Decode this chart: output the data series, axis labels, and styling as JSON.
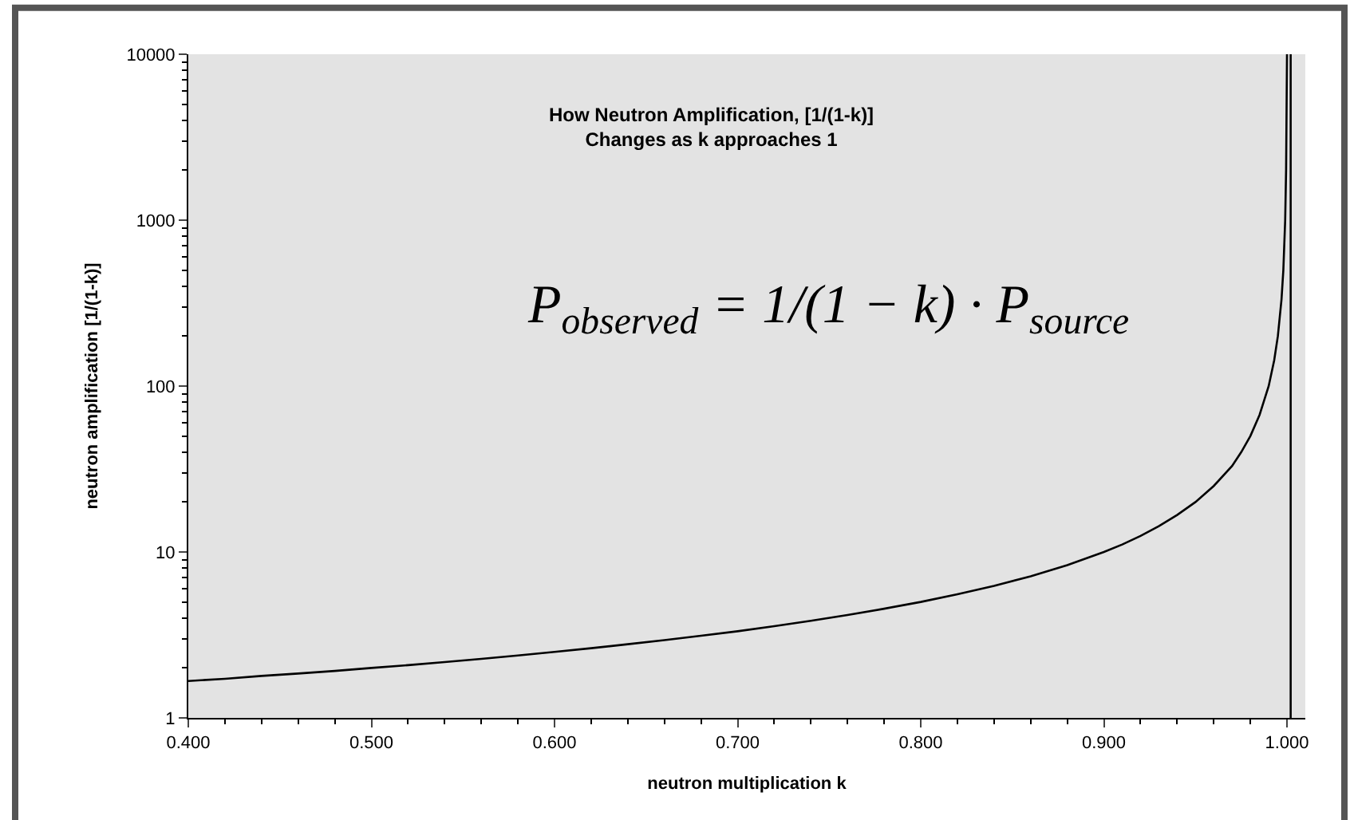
{
  "chart_data": {
    "type": "line",
    "title": "How Neutron Amplification, [1/(1-k)]\nChanges as k approaches 1",
    "xlabel": "neutron multiplication k",
    "ylabel": "neutron amplification [1/(1-k)]",
    "annotations": [
      "P$_{observed}$ = 1/(1 − k) · P$_{source}$"
    ],
    "series": [
      {
        "color": "#000000",
        "x": [
          0.4,
          0.42,
          0.44,
          0.46,
          0.48,
          0.5,
          0.52,
          0.54,
          0.56,
          0.58,
          0.6,
          0.62,
          0.64,
          0.66,
          0.68,
          0.7,
          0.72,
          0.74,
          0.76,
          0.78,
          0.8,
          0.82,
          0.84,
          0.86,
          0.88,
          0.9,
          0.91,
          0.92,
          0.93,
          0.94,
          0.95,
          0.96,
          0.97,
          0.975,
          0.98,
          0.985,
          0.99,
          0.993,
          0.995,
          0.997,
          0.998,
          0.999,
          0.9995,
          1.0
        ],
        "values": [
          1.67,
          1.72,
          1.79,
          1.85,
          1.92,
          2.0,
          2.08,
          2.17,
          2.27,
          2.38,
          2.5,
          2.63,
          2.78,
          2.94,
          3.13,
          3.33,
          3.57,
          3.85,
          4.17,
          4.55,
          5.0,
          5.56,
          6.25,
          7.14,
          8.33,
          10,
          11.1,
          12.5,
          14.3,
          16.7,
          20,
          25,
          33,
          40,
          50,
          67,
          100,
          143,
          200,
          333,
          500,
          1000,
          2000,
          10000
        ]
      }
    ],
    "ref_lines": [
      {
        "axis": "x",
        "value": 1.002,
        "color": "#000000"
      }
    ],
    "xlim": [
      0.4,
      1.01
    ],
    "xticks": [
      {
        "value": 0.4,
        "label": "0.400"
      },
      {
        "value": 0.5,
        "label": "0.500"
      },
      {
        "value": 0.6,
        "label": "0.600"
      },
      {
        "value": 0.7,
        "label": "0.700"
      },
      {
        "value": 0.8,
        "label": "0.800"
      },
      {
        "value": 0.9,
        "label": "0.900"
      },
      {
        "value": 1.0,
        "label": "1.000"
      }
    ],
    "ylim": [
      1,
      10000
    ],
    "yticks": [
      1,
      10,
      100,
      1000,
      10000
    ],
    "log": true,
    "grid": false,
    "marker": "none",
    "line_style": "solid"
  }
}
